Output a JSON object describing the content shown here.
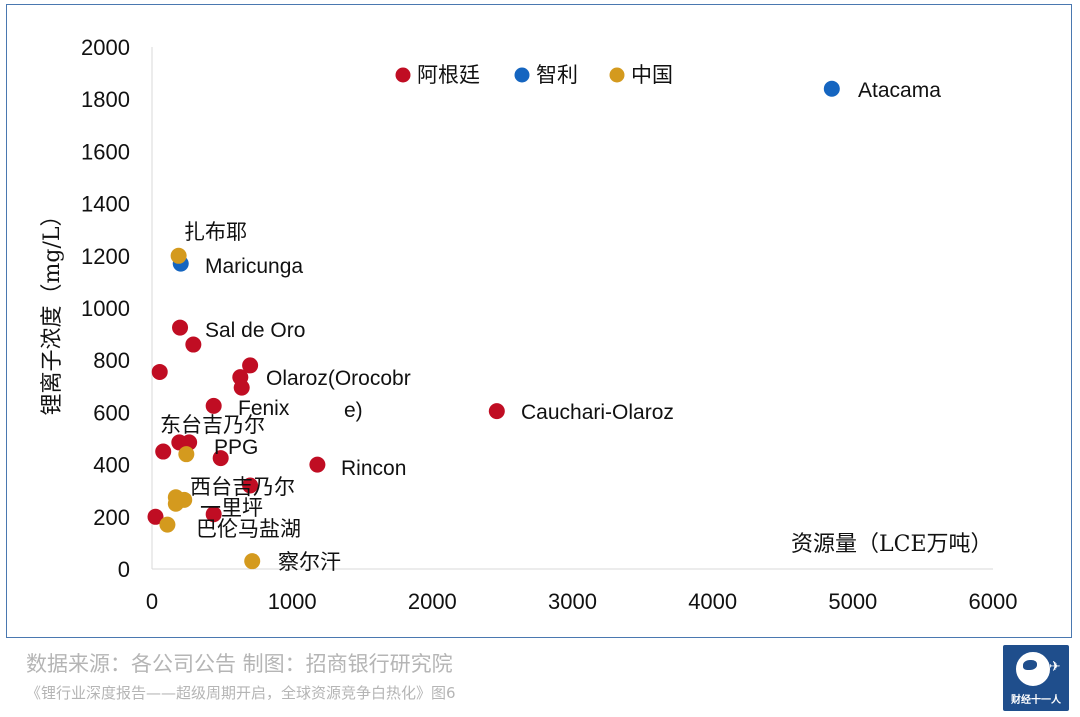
{
  "chart_data": {
    "type": "scatter",
    "xlabel": "资源量（LCE万吨）",
    "ylabel": "锂离子浓度（mg/L）",
    "xlim": [
      0,
      6000
    ],
    "ylim": [
      0,
      2000
    ],
    "x_ticks": [
      "0",
      "1000",
      "2000",
      "3000",
      "4000",
      "5000",
      "6000"
    ],
    "y_ticks": [
      "0",
      "200",
      "400",
      "600",
      "800",
      "1000",
      "1200",
      "1400",
      "1600",
      "1800",
      "2000"
    ],
    "grid": false,
    "legend_position": "top",
    "series": [
      {
        "name": "阿根廷",
        "color": "#c00d23",
        "points": [
          {
            "x": 200,
            "y": 925,
            "label": "Sal de Oro"
          },
          {
            "x": 295,
            "y": 860,
            "label": ""
          },
          {
            "x": 55,
            "y": 755,
            "label": ""
          },
          {
            "x": 700,
            "y": 780,
            "label": "Olaroz(Orocobre)"
          },
          {
            "x": 630,
            "y": 735,
            "label": ""
          },
          {
            "x": 640,
            "y": 695,
            "label": ""
          },
          {
            "x": 440,
            "y": 625,
            "label": "Fenix"
          },
          {
            "x": 195,
            "y": 485,
            "label": "东台吉乃尔"
          },
          {
            "x": 265,
            "y": 485,
            "label": ""
          },
          {
            "x": 80,
            "y": 450,
            "label": ""
          },
          {
            "x": 490,
            "y": 425,
            "label": "PPG"
          },
          {
            "x": 1180,
            "y": 400,
            "label": "Rincon"
          },
          {
            "x": 700,
            "y": 320,
            "label": ""
          },
          {
            "x": 25,
            "y": 200,
            "label": ""
          },
          {
            "x": 440,
            "y": 210,
            "label": ""
          },
          {
            "x": 2460,
            "y": 605,
            "label": "Cauchari-Olaroz"
          }
        ]
      },
      {
        "name": "智利",
        "color": "#1565c0",
        "points": [
          {
            "x": 4850,
            "y": 1840,
            "label": "Atacama"
          },
          {
            "x": 205,
            "y": 1170,
            "label": "Maricunga"
          }
        ]
      },
      {
        "name": "中国",
        "color": "#d49a1e",
        "points": [
          {
            "x": 190,
            "y": 1200,
            "label": "扎布耶"
          },
          {
            "x": 245,
            "y": 440,
            "label": ""
          },
          {
            "x": 170,
            "y": 275,
            "label": "西台吉乃尔"
          },
          {
            "x": 230,
            "y": 265,
            "label": "一里坪"
          },
          {
            "x": 170,
            "y": 250,
            "label": ""
          },
          {
            "x": 110,
            "y": 170,
            "label": "巴伦马盐湖"
          },
          {
            "x": 715,
            "y": 30,
            "label": "察尔汗"
          }
        ]
      }
    ]
  },
  "footer": {
    "source": "数据来源：各公司公告 制图：招商银行研究院",
    "reference": "《锂行业深度报告——超级周期开启，全球资源竞争白热化》图6",
    "logo_text": "财经十一人"
  }
}
